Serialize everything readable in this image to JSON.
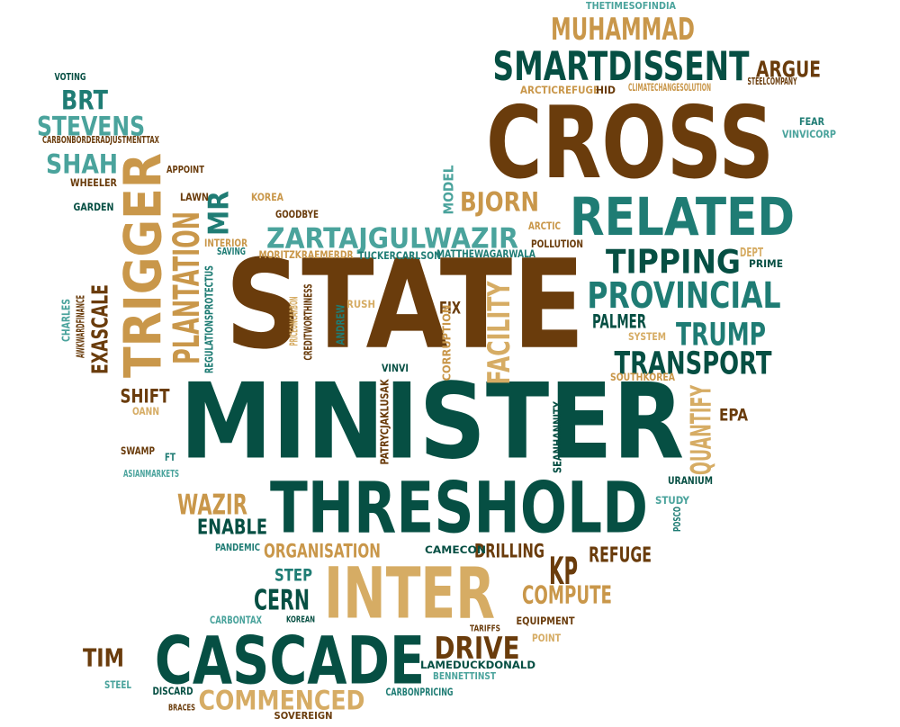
{
  "palette": {
    "dark_brown": "#6a3c0c",
    "dark_green": "#064f43",
    "teal": "#1f7c74",
    "tan": "#c9974a",
    "sand": "#d6ac64",
    "light_teal": "#4aa39c"
  },
  "words": [
    {
      "text": "STATE",
      "color": "dark_brown"
    },
    {
      "text": "MINISTER",
      "color": "dark_green"
    },
    {
      "text": "CROSS",
      "color": "dark_brown"
    },
    {
      "text": "THRESHOLD",
      "color": "dark_green"
    },
    {
      "text": "CASCADE",
      "color": "dark_green"
    },
    {
      "text": "INTER",
      "color": "sand"
    },
    {
      "text": "RELATED",
      "color": "teal"
    },
    {
      "text": "TRIGGER",
      "color": "tan"
    },
    {
      "text": "SMARTDISSENT",
      "color": "dark_green"
    },
    {
      "text": "MUHAMMAD",
      "color": "tan"
    },
    {
      "text": "PROVINCIAL",
      "color": "teal"
    },
    {
      "text": "TIPPING",
      "color": "dark_green"
    },
    {
      "text": "TRUMP",
      "color": "teal"
    },
    {
      "text": "TRANSPORT",
      "color": "dark_green"
    },
    {
      "text": "COMMENCED",
      "color": "sand"
    },
    {
      "text": "ZARTAJGULWAZIR",
      "color": "light_teal"
    },
    {
      "text": "PLANTATION",
      "color": "tan"
    },
    {
      "text": "STEVENS",
      "color": "light_teal"
    },
    {
      "text": "BRT",
      "color": "teal"
    },
    {
      "text": "SHAH",
      "color": "light_teal"
    },
    {
      "text": "BJORN",
      "color": "tan"
    },
    {
      "text": "ARGUE",
      "color": "dark_brown"
    },
    {
      "text": "MR",
      "color": "teal"
    },
    {
      "text": "WAZIR",
      "color": "tan"
    },
    {
      "text": "DRIVE",
      "color": "dark_brown"
    },
    {
      "text": "CERN",
      "color": "dark_green"
    },
    {
      "text": "KP",
      "color": "dark_brown"
    },
    {
      "text": "COMPUTE",
      "color": "tan"
    },
    {
      "text": "TIM",
      "color": "dark_brown"
    },
    {
      "text": "ENABLE",
      "color": "dark_green"
    },
    {
      "text": "FACILITY",
      "color": "sand"
    },
    {
      "text": "QUANTIFY",
      "color": "sand"
    },
    {
      "text": "EXASCALE",
      "color": "dark_brown"
    },
    {
      "text": "ORGANISATION",
      "color": "tan"
    },
    {
      "text": "DRILLING",
      "color": "dark_brown"
    },
    {
      "text": "PALMER",
      "color": "dark_green"
    },
    {
      "text": "REFUGE",
      "color": "dark_brown"
    },
    {
      "text": "SHIFT",
      "color": "dark_brown"
    },
    {
      "text": "FIX",
      "color": "dark_brown"
    },
    {
      "text": "MODEL",
      "color": "light_teal"
    },
    {
      "text": "EPA",
      "color": "dark_brown"
    },
    {
      "text": "STEP",
      "color": "teal"
    },
    {
      "text": "CHARLES",
      "color": "light_teal"
    },
    {
      "text": "AWKWARDFINANCE",
      "color": "dark_brown"
    },
    {
      "text": "ANDREW",
      "color": "teal"
    },
    {
      "text": "CORRUPTION",
      "color": "tan"
    },
    {
      "text": "PATRYCJAKLUSAK",
      "color": "dark_brown"
    },
    {
      "text": "SEANHANNITY",
      "color": "dark_green"
    },
    {
      "text": "REGULATIONSPROTECTUS",
      "color": "teal"
    },
    {
      "text": "PRICEONCARBON",
      "color": "sand"
    },
    {
      "text": "CREDITWORTHINESS",
      "color": "dark_brown"
    },
    {
      "text": "THETIMESOFINDIA",
      "color": "light_teal"
    },
    {
      "text": "VOTING",
      "color": "dark_green"
    },
    {
      "text": "CARBONBORDERADJUSTMENTTAX",
      "color": "dark_brown"
    },
    {
      "text": "ARCTICREFUGE",
      "color": "tan"
    },
    {
      "text": "HID",
      "color": "dark_brown"
    },
    {
      "text": "CLIMATECHANGESOLUTION",
      "color": "tan"
    },
    {
      "text": "STEELCOMPANY",
      "color": "dark_brown"
    },
    {
      "text": "FEAR",
      "color": "teal"
    },
    {
      "text": "VINVICORP",
      "color": "light_teal"
    },
    {
      "text": "APPOINT",
      "color": "dark_brown"
    },
    {
      "text": "WHEELER",
      "color": "dark_brown"
    },
    {
      "text": "LAWN",
      "color": "dark_brown"
    },
    {
      "text": "KOREA",
      "color": "tan"
    },
    {
      "text": "GARDEN",
      "color": "dark_green"
    },
    {
      "text": "GOODBYE",
      "color": "dark_brown"
    },
    {
      "text": "ARCTIC",
      "color": "tan"
    },
    {
      "text": "INTERIOR",
      "color": "tan"
    },
    {
      "text": "SAVING",
      "color": "teal"
    },
    {
      "text": "POLLUTION",
      "color": "dark_brown"
    },
    {
      "text": "DEPT",
      "color": "sand"
    },
    {
      "text": "PRIME",
      "color": "dark_green"
    },
    {
      "text": "MORITZKRAEMERDR",
      "color": "tan"
    },
    {
      "text": "TUCKERCARLSON",
      "color": "teal"
    },
    {
      "text": "MATTHEWAGARWALA",
      "color": "teal"
    },
    {
      "text": "RUSH",
      "color": "sand"
    },
    {
      "text": "SYSTEM",
      "color": "sand"
    },
    {
      "text": "VINVI",
      "color": "dark_green"
    },
    {
      "text": "SOUTHKOREA",
      "color": "tan"
    },
    {
      "text": "OANN",
      "color": "sand"
    },
    {
      "text": "SWAMP",
      "color": "dark_brown"
    },
    {
      "text": "FT",
      "color": "teal"
    },
    {
      "text": "ASIANMARKETS",
      "color": "light_teal"
    },
    {
      "text": "URANIUM",
      "color": "dark_green"
    },
    {
      "text": "STUDY",
      "color": "light_teal"
    },
    {
      "text": "POSCO",
      "color": "teal"
    },
    {
      "text": "PANDEMIC",
      "color": "teal"
    },
    {
      "text": "CAMECON",
      "color": "dark_green"
    },
    {
      "text": "CARBONTAX",
      "color": "light_teal"
    },
    {
      "text": "KOREAN",
      "color": "dark_green"
    },
    {
      "text": "TARIFFS",
      "color": "dark_brown"
    },
    {
      "text": "EQUIPMENT",
      "color": "dark_brown"
    },
    {
      "text": "POINT",
      "color": "sand"
    },
    {
      "text": "LAMEDUCKDONALD",
      "color": "dark_green"
    },
    {
      "text": "BENNETTINST",
      "color": "light_teal"
    },
    {
      "text": "STEEL",
      "color": "light_teal"
    },
    {
      "text": "DISCARD",
      "color": "dark_green"
    },
    {
      "text": "CARBONPRICING",
      "color": "teal"
    },
    {
      "text": "BRACES",
      "color": "dark_brown"
    },
    {
      "text": "SOVEREIGN",
      "color": "dark_brown"
    }
  ]
}
